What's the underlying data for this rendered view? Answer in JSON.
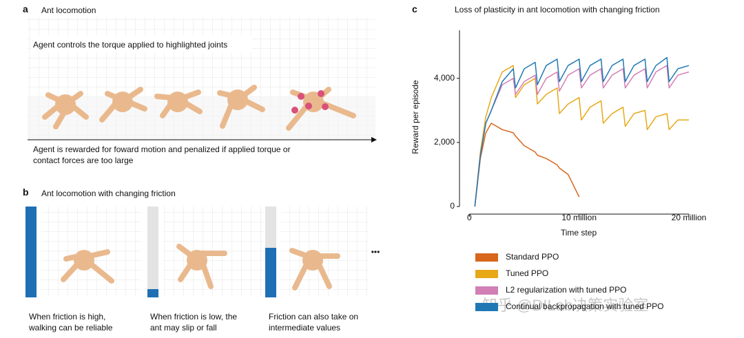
{
  "panel_a": {
    "label": "a",
    "title": "Ant locomotion",
    "top_text": "Agent controls the torque applied to highlighted joints",
    "bottom_text": "Agent is rewarded for foward motion and penalized if applied torque or contact forces are too large"
  },
  "panel_b": {
    "label": "b",
    "title": "Ant locomotion with changing friction",
    "captions": [
      "When friction is high, walking can be reliable",
      "When friction is low, the ant may slip or fall",
      "Friction can also take on intermediate values"
    ]
  },
  "panel_c_label": "c",
  "watermark": "知乎 @DILab决策实验室",
  "chart_data": {
    "type": "line",
    "title": "Loss of plasticity in ant locomotion with changing friction",
    "xlabel": "Time step",
    "ylabel": "Reward per episode",
    "x": [
      500000,
      1000000,
      1500000,
      2000000,
      3000000,
      4000000,
      4200000,
      5000000,
      6000000,
      6200000,
      7000000,
      8000000,
      8200000,
      9000000,
      10000000,
      10200000,
      11000000,
      12000000,
      12200000,
      13000000,
      14000000,
      14200000,
      15000000,
      16000000,
      16200000,
      17000000,
      18000000,
      18200000,
      19000000,
      20000000
    ],
    "series": [
      {
        "name": "Standard PPO",
        "color": "#d8661c",
        "values": [
          0,
          1500,
          2300,
          2600,
          2400,
          2300,
          2200,
          1900,
          1700,
          1600,
          1500,
          1300,
          1200,
          1000,
          300,
          null,
          null,
          null,
          null,
          null,
          null,
          null,
          null,
          null,
          null,
          null,
          null,
          null,
          null,
          null
        ]
      },
      {
        "name": "Tuned PPO",
        "color": "#e6a817",
        "values": [
          0,
          1700,
          2800,
          3400,
          4200,
          4400,
          3400,
          3800,
          4000,
          3200,
          3500,
          3700,
          2900,
          3200,
          3400,
          2700,
          3100,
          3300,
          2600,
          2900,
          3100,
          2500,
          2900,
          3000,
          2400,
          2800,
          2900,
          2400,
          2700,
          2700
        ]
      },
      {
        "name": "L2 regularization with tuned PPO",
        "color": "#d17fb5",
        "values": [
          0,
          1600,
          2600,
          3000,
          3800,
          4000,
          3500,
          3900,
          4100,
          3500,
          4000,
          4200,
          3600,
          4100,
          4300,
          3700,
          4100,
          4300,
          3700,
          4100,
          4300,
          3700,
          4100,
          4300,
          3700,
          4200,
          4400,
          3700,
          4100,
          4200
        ]
      },
      {
        "name": "Continual backpropagation with tuned PPO",
        "color": "#1f78b4",
        "values": [
          0,
          1600,
          2600,
          3000,
          3900,
          4300,
          3700,
          4300,
          4500,
          3800,
          4400,
          4600,
          3900,
          4400,
          4600,
          3900,
          4400,
          4600,
          3900,
          4400,
          4600,
          3900,
          4400,
          4600,
          3900,
          4400,
          4650,
          3900,
          4300,
          4400
        ]
      }
    ],
    "xlim": [
      -900000,
      20000000
    ],
    "ylim": [
      0,
      5500
    ],
    "xticks": [
      0,
      {
        "value": 10000000,
        "label": "10 million"
      },
      {
        "value": 20000000,
        "label": "20 million"
      }
    ],
    "yticks": [
      0,
      {
        "value": 2000,
        "label": "2,000"
      },
      {
        "value": 4000,
        "label": "4,000"
      }
    ],
    "grid": false,
    "legend": "bottom"
  }
}
